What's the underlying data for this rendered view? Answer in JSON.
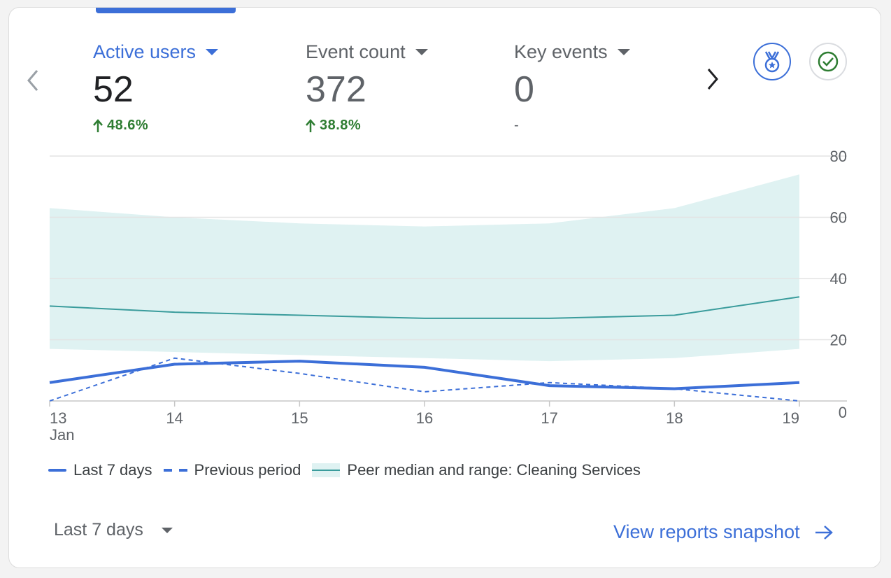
{
  "metrics": [
    {
      "label": "Active users",
      "value": "52",
      "change": "48.6%",
      "active": true
    },
    {
      "label": "Event count",
      "value": "372",
      "change": "38.8%",
      "active": false
    },
    {
      "label": "Key events",
      "value": "0",
      "change": "-",
      "active": false
    }
  ],
  "icons": {
    "prev": "chevron-left-icon",
    "next": "chevron-right-icon",
    "award": "award-medal-icon",
    "check": "check-circle-icon",
    "up": "arrow-up-icon",
    "link_arrow": "arrow-right-icon"
  },
  "colors": {
    "accent": "#3c6fd8",
    "positive": "#2e7d32",
    "peer_band": "#dff2f2",
    "peer_line": "#3a9c9c"
  },
  "chart_data": {
    "type": "line",
    "x": [
      "13",
      "14",
      "15",
      "16",
      "17",
      "18",
      "19"
    ],
    "x_sublabel": "Jan",
    "ylim": [
      0,
      80
    ],
    "y_ticks": [
      "0",
      "20",
      "40",
      "60",
      "80"
    ],
    "y_axis_side": "right",
    "series": [
      {
        "name": "Last 7 days",
        "style": "solid",
        "values": [
          6,
          12,
          13,
          11,
          5,
          4,
          6
        ]
      },
      {
        "name": "Previous period",
        "style": "dashed",
        "values": [
          0,
          14,
          9,
          3,
          6,
          4,
          0
        ]
      },
      {
        "name": "Peer median and range: Cleaning Services",
        "style": "band",
        "median": [
          31,
          29,
          28,
          27,
          27,
          28,
          34
        ],
        "low": [
          17,
          16,
          15,
          14,
          13,
          14,
          17
        ],
        "high": [
          63,
          60,
          58,
          57,
          58,
          63,
          74
        ]
      }
    ],
    "legend_position": "bottom-left",
    "grid": true
  },
  "footer": {
    "date_range": "Last 7 days",
    "link": "View reports snapshot"
  }
}
